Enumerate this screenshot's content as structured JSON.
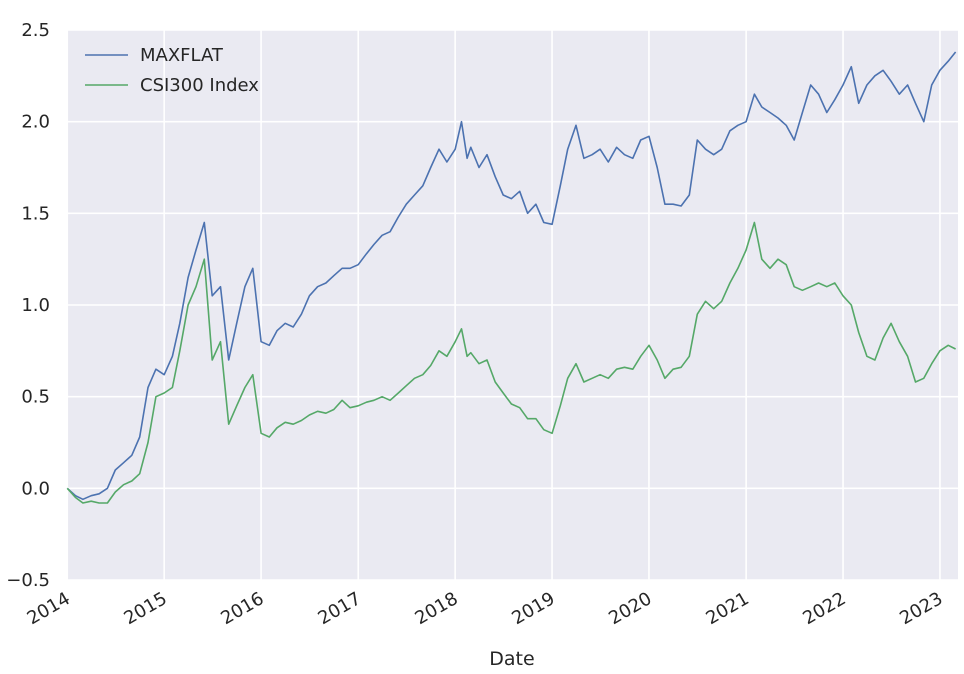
{
  "chart_data": {
    "type": "line",
    "title": "",
    "xlabel": "Date",
    "ylabel": "",
    "xlim": [
      "2013-12-31",
      "2023-03-10"
    ],
    "ylim": [
      -0.5,
      2.5
    ],
    "yticks": [
      -0.5,
      0.0,
      0.5,
      1.0,
      1.5,
      2.0,
      2.5
    ],
    "ytick_labels": [
      "−0.5",
      "0.0",
      "0.5",
      "1.0",
      "1.5",
      "2.0",
      "2.5"
    ],
    "xticks": [
      "2014-01-01",
      "2015-01-01",
      "2016-01-01",
      "2017-01-01",
      "2018-01-01",
      "2019-01-01",
      "2020-01-01",
      "2021-01-01",
      "2022-01-01",
      "2023-01-01"
    ],
    "xtick_labels": [
      "2014",
      "2015",
      "2016",
      "2017",
      "2018",
      "2019",
      "2020",
      "2021",
      "2022",
      "2023"
    ],
    "grid": true,
    "legend": "top-left",
    "background": "#eaeaf2",
    "series": [
      {
        "name": "MAXFLAT",
        "color": "#4c72b0",
        "points": [
          [
            "2014-01-01",
            0.0
          ],
          [
            "2014-02-01",
            -0.04
          ],
          [
            "2014-03-01",
            -0.06
          ],
          [
            "2014-04-01",
            -0.04
          ],
          [
            "2014-05-01",
            -0.03
          ],
          [
            "2014-06-01",
            0.0
          ],
          [
            "2014-07-01",
            0.1
          ],
          [
            "2014-08-01",
            0.14
          ],
          [
            "2014-09-01",
            0.18
          ],
          [
            "2014-10-01",
            0.28
          ],
          [
            "2014-11-01",
            0.55
          ],
          [
            "2014-12-01",
            0.65
          ],
          [
            "2015-01-01",
            0.62
          ],
          [
            "2015-02-01",
            0.72
          ],
          [
            "2015-03-01",
            0.9
          ],
          [
            "2015-04-01",
            1.15
          ],
          [
            "2015-05-01",
            1.3
          ],
          [
            "2015-06-01",
            1.45
          ],
          [
            "2015-07-01",
            1.05
          ],
          [
            "2015-08-01",
            1.1
          ],
          [
            "2015-09-01",
            0.7
          ],
          [
            "2015-10-01",
            0.9
          ],
          [
            "2015-11-01",
            1.1
          ],
          [
            "2015-12-01",
            1.2
          ],
          [
            "2016-01-01",
            0.8
          ],
          [
            "2016-02-01",
            0.78
          ],
          [
            "2016-03-01",
            0.86
          ],
          [
            "2016-04-01",
            0.9
          ],
          [
            "2016-05-01",
            0.88
          ],
          [
            "2016-06-01",
            0.95
          ],
          [
            "2016-07-01",
            1.05
          ],
          [
            "2016-08-01",
            1.1
          ],
          [
            "2016-09-01",
            1.12
          ],
          [
            "2016-10-01",
            1.16
          ],
          [
            "2016-11-01",
            1.2
          ],
          [
            "2016-12-01",
            1.2
          ],
          [
            "2017-01-01",
            1.22
          ],
          [
            "2017-02-01",
            1.28
          ],
          [
            "2017-03-01",
            1.33
          ],
          [
            "2017-04-01",
            1.38
          ],
          [
            "2017-05-01",
            1.4
          ],
          [
            "2017-06-01",
            1.48
          ],
          [
            "2017-07-01",
            1.55
          ],
          [
            "2017-08-01",
            1.6
          ],
          [
            "2017-09-01",
            1.65
          ],
          [
            "2017-10-01",
            1.75
          ],
          [
            "2017-11-01",
            1.85
          ],
          [
            "2017-12-01",
            1.78
          ],
          [
            "2018-01-01",
            1.85
          ],
          [
            "2018-01-25",
            2.0
          ],
          [
            "2018-02-15",
            1.8
          ],
          [
            "2018-03-01",
            1.86
          ],
          [
            "2018-04-01",
            1.75
          ],
          [
            "2018-05-01",
            1.82
          ],
          [
            "2018-06-01",
            1.7
          ],
          [
            "2018-07-01",
            1.6
          ],
          [
            "2018-08-01",
            1.58
          ],
          [
            "2018-09-01",
            1.62
          ],
          [
            "2018-10-01",
            1.5
          ],
          [
            "2018-11-01",
            1.55
          ],
          [
            "2018-12-01",
            1.45
          ],
          [
            "2019-01-01",
            1.44
          ],
          [
            "2019-02-01",
            1.65
          ],
          [
            "2019-03-01",
            1.85
          ],
          [
            "2019-04-01",
            1.98
          ],
          [
            "2019-05-01",
            1.8
          ],
          [
            "2019-06-01",
            1.82
          ],
          [
            "2019-07-01",
            1.85
          ],
          [
            "2019-08-01",
            1.78
          ],
          [
            "2019-09-01",
            1.86
          ],
          [
            "2019-10-01",
            1.82
          ],
          [
            "2019-11-01",
            1.8
          ],
          [
            "2019-12-01",
            1.9
          ],
          [
            "2020-01-01",
            1.92
          ],
          [
            "2020-02-01",
            1.75
          ],
          [
            "2020-03-01",
            1.55
          ],
          [
            "2020-04-01",
            1.55
          ],
          [
            "2020-05-01",
            1.54
          ],
          [
            "2020-06-01",
            1.6
          ],
          [
            "2020-07-01",
            1.9
          ],
          [
            "2020-08-01",
            1.85
          ],
          [
            "2020-09-01",
            1.82
          ],
          [
            "2020-10-01",
            1.85
          ],
          [
            "2020-11-01",
            1.95
          ],
          [
            "2020-12-01",
            1.98
          ],
          [
            "2021-01-01",
            2.0
          ],
          [
            "2021-02-01",
            2.15
          ],
          [
            "2021-03-01",
            2.08
          ],
          [
            "2021-04-01",
            2.05
          ],
          [
            "2021-05-01",
            2.02
          ],
          [
            "2021-06-01",
            1.98
          ],
          [
            "2021-07-01",
            1.9
          ],
          [
            "2021-08-01",
            2.05
          ],
          [
            "2021-09-01",
            2.2
          ],
          [
            "2021-10-01",
            2.15
          ],
          [
            "2021-11-01",
            2.05
          ],
          [
            "2021-12-01",
            2.12
          ],
          [
            "2022-01-01",
            2.2
          ],
          [
            "2022-02-01",
            2.3
          ],
          [
            "2022-03-01",
            2.1
          ],
          [
            "2022-04-01",
            2.2
          ],
          [
            "2022-05-01",
            2.25
          ],
          [
            "2022-06-01",
            2.28
          ],
          [
            "2022-07-01",
            2.22
          ],
          [
            "2022-08-01",
            2.15
          ],
          [
            "2022-09-01",
            2.2
          ],
          [
            "2022-10-01",
            2.1
          ],
          [
            "2022-11-01",
            2.0
          ],
          [
            "2022-12-01",
            2.2
          ],
          [
            "2023-01-01",
            2.28
          ],
          [
            "2023-02-01",
            2.33
          ],
          [
            "2023-03-01",
            2.38
          ]
        ]
      },
      {
        "name": "CSI300 Index",
        "color": "#55a868",
        "points": [
          [
            "2014-01-01",
            0.0
          ],
          [
            "2014-02-01",
            -0.05
          ],
          [
            "2014-03-01",
            -0.08
          ],
          [
            "2014-04-01",
            -0.07
          ],
          [
            "2014-05-01",
            -0.08
          ],
          [
            "2014-06-01",
            -0.08
          ],
          [
            "2014-07-01",
            -0.02
          ],
          [
            "2014-08-01",
            0.02
          ],
          [
            "2014-09-01",
            0.04
          ],
          [
            "2014-10-01",
            0.08
          ],
          [
            "2014-11-01",
            0.25
          ],
          [
            "2014-12-01",
            0.5
          ],
          [
            "2015-01-01",
            0.52
          ],
          [
            "2015-02-01",
            0.55
          ],
          [
            "2015-03-01",
            0.75
          ],
          [
            "2015-04-01",
            1.0
          ],
          [
            "2015-05-01",
            1.1
          ],
          [
            "2015-06-01",
            1.25
          ],
          [
            "2015-07-01",
            0.7
          ],
          [
            "2015-08-01",
            0.8
          ],
          [
            "2015-09-01",
            0.35
          ],
          [
            "2015-10-01",
            0.45
          ],
          [
            "2015-11-01",
            0.55
          ],
          [
            "2015-12-01",
            0.62
          ],
          [
            "2016-01-01",
            0.3
          ],
          [
            "2016-02-01",
            0.28
          ],
          [
            "2016-03-01",
            0.33
          ],
          [
            "2016-04-01",
            0.36
          ],
          [
            "2016-05-01",
            0.35
          ],
          [
            "2016-06-01",
            0.37
          ],
          [
            "2016-07-01",
            0.4
          ],
          [
            "2016-08-01",
            0.42
          ],
          [
            "2016-09-01",
            0.41
          ],
          [
            "2016-10-01",
            0.43
          ],
          [
            "2016-11-01",
            0.48
          ],
          [
            "2016-12-01",
            0.44
          ],
          [
            "2017-01-01",
            0.45
          ],
          [
            "2017-02-01",
            0.47
          ],
          [
            "2017-03-01",
            0.48
          ],
          [
            "2017-04-01",
            0.5
          ],
          [
            "2017-05-01",
            0.48
          ],
          [
            "2017-06-01",
            0.52
          ],
          [
            "2017-07-01",
            0.56
          ],
          [
            "2017-08-01",
            0.6
          ],
          [
            "2017-09-01",
            0.62
          ],
          [
            "2017-10-01",
            0.67
          ],
          [
            "2017-11-01",
            0.75
          ],
          [
            "2017-12-01",
            0.72
          ],
          [
            "2018-01-01",
            0.8
          ],
          [
            "2018-01-25",
            0.87
          ],
          [
            "2018-02-15",
            0.72
          ],
          [
            "2018-03-01",
            0.74
          ],
          [
            "2018-04-01",
            0.68
          ],
          [
            "2018-05-01",
            0.7
          ],
          [
            "2018-06-01",
            0.58
          ],
          [
            "2018-07-01",
            0.52
          ],
          [
            "2018-08-01",
            0.46
          ],
          [
            "2018-09-01",
            0.44
          ],
          [
            "2018-10-01",
            0.38
          ],
          [
            "2018-11-01",
            0.38
          ],
          [
            "2018-12-01",
            0.32
          ],
          [
            "2019-01-01",
            0.3
          ],
          [
            "2019-02-01",
            0.45
          ],
          [
            "2019-03-01",
            0.6
          ],
          [
            "2019-04-01",
            0.68
          ],
          [
            "2019-05-01",
            0.58
          ],
          [
            "2019-06-01",
            0.6
          ],
          [
            "2019-07-01",
            0.62
          ],
          [
            "2019-08-01",
            0.6
          ],
          [
            "2019-09-01",
            0.65
          ],
          [
            "2019-10-01",
            0.66
          ],
          [
            "2019-11-01",
            0.65
          ],
          [
            "2019-12-01",
            0.72
          ],
          [
            "2020-01-01",
            0.78
          ],
          [
            "2020-02-01",
            0.7
          ],
          [
            "2020-03-01",
            0.6
          ],
          [
            "2020-04-01",
            0.65
          ],
          [
            "2020-05-01",
            0.66
          ],
          [
            "2020-06-01",
            0.72
          ],
          [
            "2020-07-01",
            0.95
          ],
          [
            "2020-08-01",
            1.02
          ],
          [
            "2020-09-01",
            0.98
          ],
          [
            "2020-10-01",
            1.02
          ],
          [
            "2020-11-01",
            1.12
          ],
          [
            "2020-12-01",
            1.2
          ],
          [
            "2021-01-01",
            1.3
          ],
          [
            "2021-02-01",
            1.45
          ],
          [
            "2021-03-01",
            1.25
          ],
          [
            "2021-04-01",
            1.2
          ],
          [
            "2021-05-01",
            1.25
          ],
          [
            "2021-06-01",
            1.22
          ],
          [
            "2021-07-01",
            1.1
          ],
          [
            "2021-08-01",
            1.08
          ],
          [
            "2021-09-01",
            1.1
          ],
          [
            "2021-10-01",
            1.12
          ],
          [
            "2021-11-01",
            1.1
          ],
          [
            "2021-12-01",
            1.12
          ],
          [
            "2022-01-01",
            1.05
          ],
          [
            "2022-02-01",
            1.0
          ],
          [
            "2022-03-01",
            0.85
          ],
          [
            "2022-04-01",
            0.72
          ],
          [
            "2022-05-01",
            0.7
          ],
          [
            "2022-06-01",
            0.82
          ],
          [
            "2022-07-01",
            0.9
          ],
          [
            "2022-08-01",
            0.8
          ],
          [
            "2022-09-01",
            0.72
          ],
          [
            "2022-10-01",
            0.58
          ],
          [
            "2022-11-01",
            0.6
          ],
          [
            "2022-12-01",
            0.68
          ],
          [
            "2023-01-01",
            0.75
          ],
          [
            "2023-02-01",
            0.78
          ],
          [
            "2023-03-01",
            0.76
          ]
        ]
      }
    ]
  }
}
